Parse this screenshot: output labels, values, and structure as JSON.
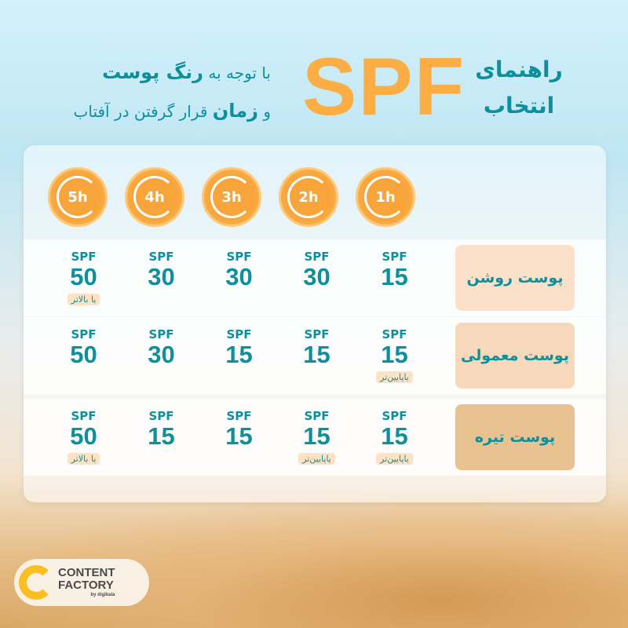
{
  "title": {
    "line1": "راهنمای",
    "line2": "انتخاب",
    "spf": "SPF"
  },
  "subtitle": {
    "a": "با توجه به",
    "b": "رنگ پوست",
    "c": "و",
    "d": "زمان",
    "e": "قرار گرفتن در آفتاب"
  },
  "hours": [
    "1h",
    "2h",
    "3h",
    "4h",
    "5h"
  ],
  "spf_label": "SPF",
  "rows": [
    {
      "label": "پوست روشن",
      "color": "#fbe1ca",
      "cells": [
        {
          "v": "15"
        },
        {
          "v": "30"
        },
        {
          "v": "30"
        },
        {
          "v": "30"
        },
        {
          "v": "50",
          "note": "یا بالاتر"
        }
      ]
    },
    {
      "label": "پوست معمولی",
      "color": "#f8d8bb",
      "cells": [
        {
          "v": "15",
          "note": "یاپایین‌تر"
        },
        {
          "v": "15"
        },
        {
          "v": "15"
        },
        {
          "v": "30"
        },
        {
          "v": "50"
        }
      ]
    },
    {
      "label": "پوست تیره",
      "color": "#e8c290",
      "cells": [
        {
          "v": "15",
          "note": "یاپایین‌تر"
        },
        {
          "v": "15",
          "note": "یاپایین‌تر"
        },
        {
          "v": "15"
        },
        {
          "v": "15"
        },
        {
          "v": "50",
          "note": "یا بالاتر"
        }
      ]
    }
  ],
  "logo": {
    "line1": "CONTENT",
    "line2": "FACTORY",
    "by": "by digikala"
  }
}
